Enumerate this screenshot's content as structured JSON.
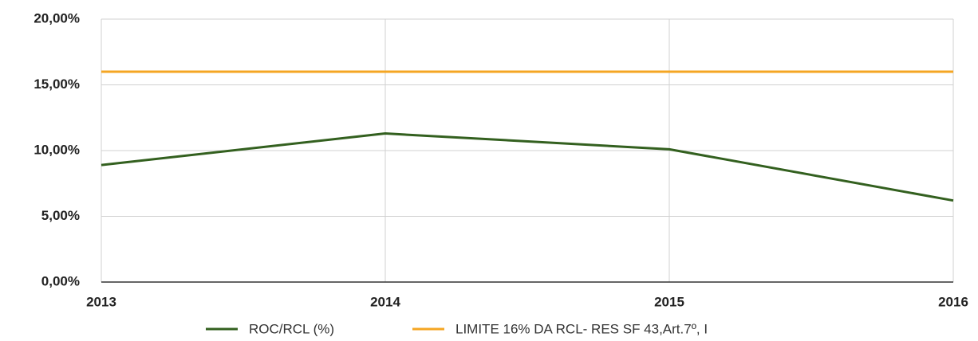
{
  "chart_data": {
    "type": "line",
    "categories": [
      "2013",
      "2014",
      "2015",
      "2016"
    ],
    "series": [
      {
        "name": "ROC/RCL (%)",
        "color": "#33601f",
        "values": [
          8.9,
          11.3,
          10.1,
          6.2
        ]
      },
      {
        "name": "LIMITE 16% DA RCL- RES SF 43,Art.7º, I",
        "color": "#f5a623",
        "values": [
          16,
          16,
          16,
          16
        ]
      }
    ],
    "ylim": [
      0,
      20
    ],
    "yticks": [
      {
        "value": 0,
        "label": "0,00%"
      },
      {
        "value": 5,
        "label": "5,00%"
      },
      {
        "value": 10,
        "label": "10,00%"
      },
      {
        "value": 15,
        "label": "15,00%"
      },
      {
        "value": 20,
        "label": "20,00%"
      }
    ],
    "grid": true,
    "legend": "bottom"
  }
}
